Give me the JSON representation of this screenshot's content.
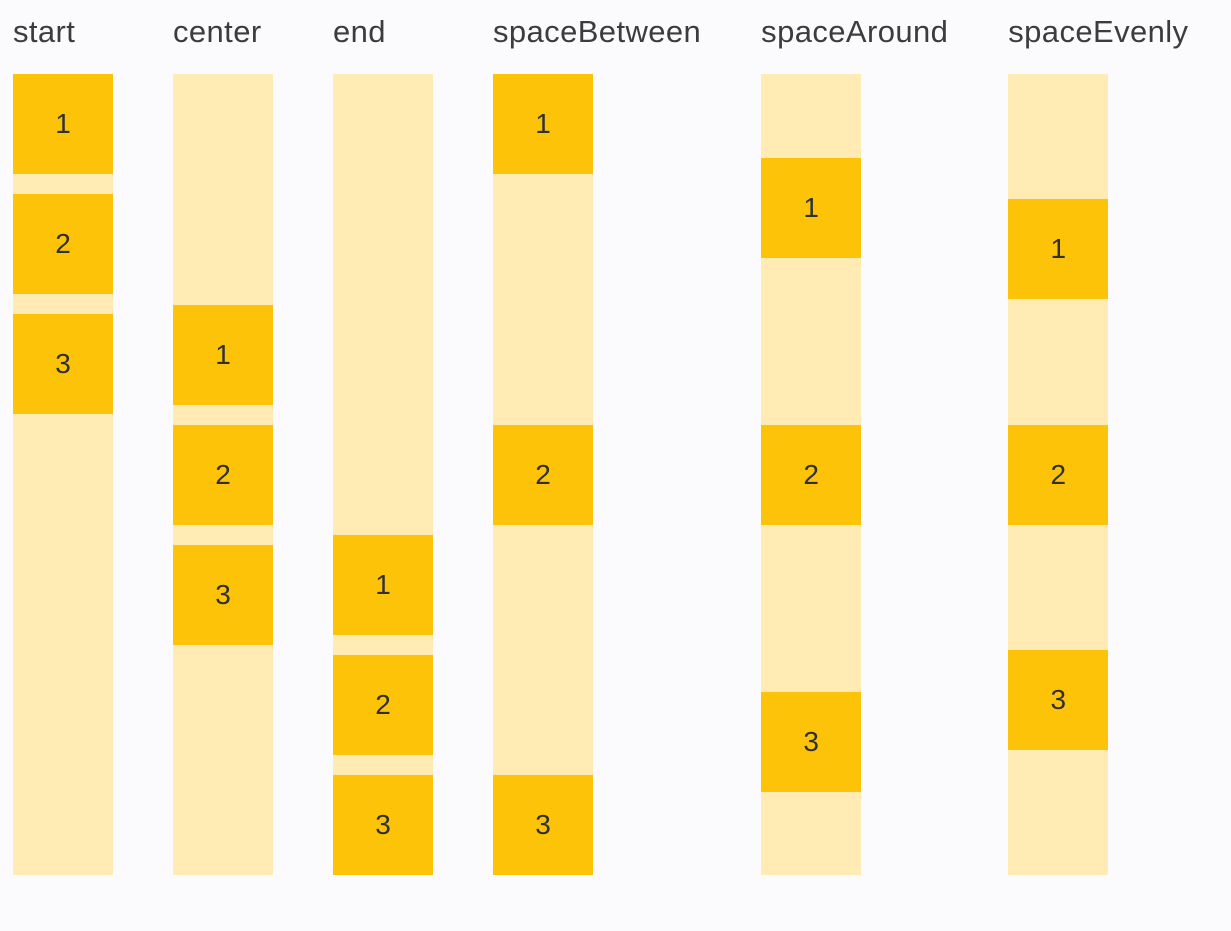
{
  "colors": {
    "page_bg": "#FBFBFE",
    "box": "#FDC308",
    "track": "#FFEBB3",
    "label_text": "#3C3C3C",
    "number_text": "#303030"
  },
  "columns": [
    {
      "label": "start",
      "justify": "start",
      "items": [
        "1",
        "2",
        "3"
      ]
    },
    {
      "label": "center",
      "justify": "center",
      "items": [
        "1",
        "2",
        "3"
      ]
    },
    {
      "label": "end",
      "justify": "end",
      "items": [
        "1",
        "2",
        "3"
      ]
    },
    {
      "label": "spaceBetween",
      "justify": "spaceBetween",
      "items": [
        "1",
        "2",
        "3"
      ]
    },
    {
      "label": "spaceAround",
      "justify": "spaceAround",
      "items": [
        "1",
        "2",
        "3"
      ]
    },
    {
      "label": "spaceEvenly",
      "justify": "spaceEvenly",
      "items": [
        "1",
        "2",
        "3"
      ]
    }
  ]
}
